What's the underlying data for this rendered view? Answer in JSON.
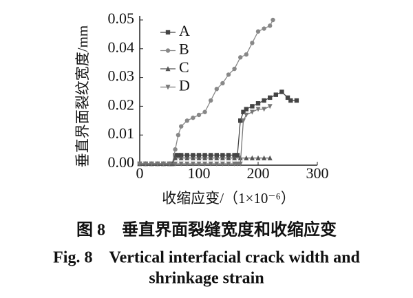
{
  "chart_data": {
    "type": "line",
    "y_label": "垂直界面裂纹宽度/mm",
    "x_label": "收缩应变/（1×10⁻⁶）",
    "xlim": [
      0,
      300
    ],
    "xticks": [
      0,
      100,
      200,
      300
    ],
    "ylim": [
      0,
      0.05
    ],
    "yticks": [
      {
        "value": 0,
        "label": "0.00"
      },
      0.01,
      0.02,
      0.03,
      0.04,
      0.05
    ],
    "legend": "upper left",
    "series": [
      {
        "name": "A",
        "color": "#444444",
        "marker": "square",
        "x": [
          0,
          10,
          20,
          30,
          40,
          50,
          55,
          60,
          65,
          70,
          80,
          90,
          100,
          110,
          120,
          130,
          140,
          150,
          160,
          165,
          170,
          175,
          180,
          190,
          200,
          210,
          220,
          230,
          240,
          250,
          255,
          265
        ],
        "values": [
          0,
          0,
          0,
          0,
          0,
          0,
          0,
          0.003,
          0.003,
          0.003,
          0.003,
          0.003,
          0.003,
          0.003,
          0.003,
          0.003,
          0.003,
          0.003,
          0.003,
          0.003,
          0.015,
          0.018,
          0.019,
          0.02,
          0.021,
          0.022,
          0.023,
          0.024,
          0.025,
          0.023,
          0.022,
          0.022
        ]
      },
      {
        "name": "B",
        "color": "#888888",
        "marker": "circle",
        "x": [
          0,
          10,
          20,
          30,
          40,
          50,
          55,
          60,
          65,
          70,
          80,
          90,
          100,
          110,
          120,
          130,
          140,
          150,
          160,
          170,
          180,
          190,
          200,
          210,
          220,
          225
        ],
        "values": [
          0,
          0,
          0,
          0,
          0,
          0,
          0,
          0.005,
          0.01,
          0.013,
          0.015,
          0.016,
          0.017,
          0.018,
          0.022,
          0.026,
          0.028,
          0.031,
          0.033,
          0.037,
          0.038,
          0.042,
          0.046,
          0.047,
          0.048,
          0.05
        ]
      },
      {
        "name": "C",
        "color": "#555555",
        "marker": "triangle",
        "x": [
          0,
          10,
          20,
          30,
          40,
          50,
          55,
          60,
          70,
          80,
          90,
          100,
          110,
          120,
          130,
          140,
          150,
          160,
          170,
          180,
          190,
          200,
          210,
          220
        ],
        "values": [
          0,
          0,
          0,
          0,
          0,
          0,
          0,
          0.002,
          0.002,
          0.002,
          0.002,
          0.002,
          0.002,
          0.002,
          0.002,
          0.002,
          0.002,
          0.002,
          0.002,
          0.002,
          0.002,
          0.002,
          0.002,
          0.002
        ]
      },
      {
        "name": "D",
        "color": "#777777",
        "marker": "triangle-down",
        "x": [
          0,
          10,
          20,
          30,
          40,
          50,
          60,
          70,
          80,
          90,
          100,
          110,
          120,
          130,
          140,
          150,
          160,
          165,
          170,
          175,
          180,
          190,
          200,
          210,
          220
        ],
        "values": [
          0,
          0,
          0,
          0,
          0,
          0,
          0,
          0,
          0,
          0,
          0,
          0,
          0,
          0,
          0,
          0,
          0,
          0,
          0,
          0.015,
          0.017,
          0.018,
          0.019,
          0.019,
          0.02
        ]
      }
    ]
  },
  "caption": [
    "图 8　垂直界面裂缝宽度和收缩应变",
    "Fig. 8　Vertical interfacial crack width and",
    "shrinkage strain"
  ]
}
